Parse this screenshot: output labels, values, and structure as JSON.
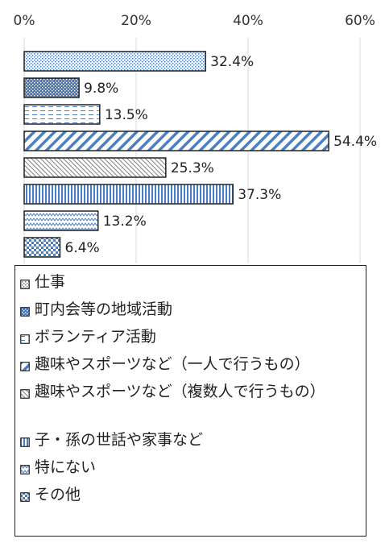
{
  "chart_data": {
    "type": "bar",
    "orientation": "horizontal",
    "x_ticks": [
      "0%",
      "20%",
      "40%",
      "60%"
    ],
    "xlim": [
      0,
      60
    ],
    "grid": true,
    "legend_position": "bottom",
    "categories": [
      "仕事",
      "町内会等の地域活動",
      "ボランティア活動",
      "趣味やスポーツなど（一人で行うもの）",
      "趣味やスポーツなど（複数人で行うもの）",
      "子・孫の世話や家事など",
      "特にない",
      "その他"
    ],
    "values": [
      32.4,
      9.8,
      13.5,
      54.4,
      25.3,
      37.3,
      13.2,
      6.4
    ],
    "value_labels": [
      "32.4%",
      "9.8%",
      "13.5%",
      "54.4%",
      "25.3%",
      "37.3%",
      "13.2%",
      "6.4%"
    ],
    "patterns": [
      "dots-fine",
      "dots-dense",
      "dashes",
      "diagonal-wide",
      "diagonal-fine",
      "vertical",
      "zigzag",
      "checker"
    ],
    "colors": {
      "pattern": "#4a7fc1",
      "dark_fill": "#3f74b8",
      "border": "#222222",
      "grid": "#d9d9d9"
    }
  }
}
